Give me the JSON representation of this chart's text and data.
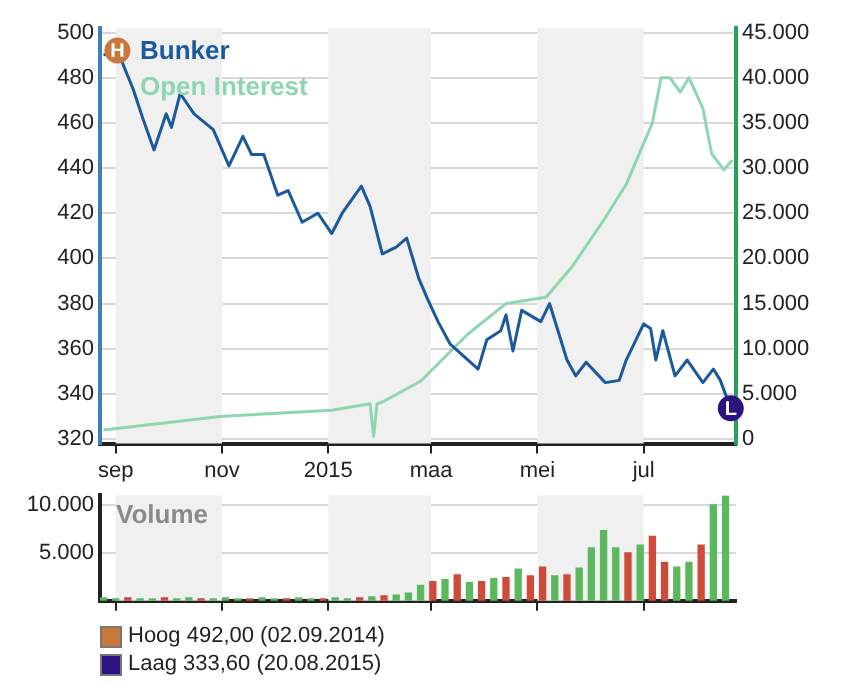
{
  "chart_data": [
    {
      "type": "line",
      "xlim": [
        "2014-08-23",
        "2015-08-23"
      ],
      "xticks": [
        {
          "value": "2014-09-01",
          "label": "sep"
        },
        {
          "value": "2014-11-01",
          "label": "nov"
        },
        {
          "value": "2015-01-01",
          "label": "2015"
        },
        {
          "value": "2015-03-01",
          "label": "maa"
        },
        {
          "value": "2015-05-01",
          "label": "mei"
        },
        {
          "value": "2015-07-01",
          "label": "jul"
        }
      ],
      "ylim": [
        318,
        502
      ],
      "yticks": [
        320,
        340,
        360,
        380,
        400,
        420,
        440,
        460,
        480,
        500
      ],
      "y2lim": [
        -500,
        45500
      ],
      "y2ticks": [
        {
          "value": 0,
          "label": "0"
        },
        {
          "value": 5000,
          "label": "5.000"
        },
        {
          "value": 10000,
          "label": "10.000"
        },
        {
          "value": 15000,
          "label": "15.000"
        },
        {
          "value": 20000,
          "label": "20.000"
        },
        {
          "value": 25000,
          "label": "25.000"
        },
        {
          "value": 30000,
          "label": "30.000"
        },
        {
          "value": 35000,
          "label": "35.000"
        },
        {
          "value": 40000,
          "label": "40.000"
        },
        {
          "value": 45000,
          "label": "45.000"
        }
      ],
      "grid": "y",
      "legend": "top left",
      "marker": "none",
      "bands": [
        {
          "axis": "x",
          "from": "2014-09-01",
          "to": "2014-11-01",
          "color": "#f0f0f0"
        },
        {
          "axis": "x",
          "from": "2015-01-01",
          "to": "2015-03-01",
          "color": "#f0f0f0"
        },
        {
          "axis": "x",
          "from": "2015-05-01",
          "to": "2015-07-01",
          "color": "#f0f0f0"
        }
      ],
      "annotations": [
        {
          "text": "H",
          "x": "2014-09-02",
          "y": 492
        },
        {
          "text": "L",
          "x": "2015-08-20",
          "y": 333.6
        },
        "Hoog 492,00 (02.09.2014)",
        "Laag 333,60 (20.08.2015)"
      ],
      "series": [
        {
          "name": "Bunker",
          "color": "#1a5a9c",
          "x": [
            "2014-08-25",
            "2014-09-02",
            "2014-09-11",
            "2014-09-17",
            "2014-09-23",
            "2014-09-30",
            "2014-10-03",
            "2014-10-08",
            "2014-10-16",
            "2014-10-27",
            "2014-11-05",
            "2014-11-13",
            "2014-11-18",
            "2014-11-25",
            "2014-12-03",
            "2014-12-09",
            "2014-12-17",
            "2014-12-26",
            "2015-01-03",
            "2015-01-09",
            "2015-01-20",
            "2015-01-25",
            "2015-02-01",
            "2015-02-09",
            "2015-02-15",
            "2015-02-22",
            "2015-02-27",
            "2015-03-05",
            "2015-03-12",
            "2015-03-28",
            "2015-04-02",
            "2015-04-10",
            "2015-04-13",
            "2015-04-17",
            "2015-04-22",
            "2015-05-03",
            "2015-05-08",
            "2015-05-18",
            "2015-05-23",
            "2015-05-29",
            "2015-06-09",
            "2015-06-17",
            "2015-06-21",
            "2015-07-01",
            "2015-07-05",
            "2015-07-08",
            "2015-07-12",
            "2015-07-19",
            "2015-07-26",
            "2015-08-04",
            "2015-08-10",
            "2015-08-14",
            "2015-08-20"
          ],
          "values": [
            490,
            492,
            475,
            461,
            448,
            464,
            458,
            473,
            464,
            457,
            441,
            454,
            446,
            446,
            428,
            430,
            416,
            420,
            411,
            420,
            432,
            423,
            402,
            405,
            409,
            391,
            382,
            372,
            362,
            351,
            364,
            368,
            375,
            359,
            377,
            372,
            380,
            355,
            348,
            354,
            345,
            346,
            355,
            371,
            369,
            355,
            368,
            348,
            355,
            345,
            351,
            346,
            333.6
          ]
        },
        {
          "name": "Open Interest",
          "color": "#8ed6b0",
          "axis": "y2",
          "x": [
            "2014-08-25",
            "2014-10-31",
            "2015-01-03",
            "2015-01-25",
            "2015-01-27",
            "2015-01-29",
            "2015-02-01",
            "2015-02-23",
            "2015-03-22",
            "2015-04-13",
            "2015-05-06",
            "2015-05-21",
            "2015-06-09",
            "2015-06-21",
            "2015-07-06",
            "2015-07-11",
            "2015-07-16",
            "2015-07-22",
            "2015-07-27",
            "2015-08-04",
            "2015-08-09",
            "2015-08-16",
            "2015-08-21"
          ],
          "values": [
            1000,
            2500,
            3200,
            3900,
            300,
            3900,
            4100,
            6400,
            11600,
            15000,
            15700,
            19100,
            24500,
            28200,
            35000,
            40000,
            40000,
            38400,
            40000,
            36600,
            31600,
            29800,
            30900
          ]
        }
      ]
    },
    {
      "type": "bar",
      "title": "Volume",
      "tick_labels": "y",
      "grid": "y",
      "xlim": [
        "2014-08-23",
        "2015-08-23"
      ],
      "xticks": [
        {
          "value": "2014-09-01",
          "label": null
        },
        {
          "value": "2014-11-01",
          "label": null
        },
        {
          "value": "2015-01-01",
          "label": null
        },
        {
          "value": "2015-03-01",
          "label": null
        },
        {
          "value": "2015-05-01",
          "label": null
        },
        {
          "value": "2015-07-01",
          "label": null
        }
      ],
      "ylim": [
        0,
        11000
      ],
      "yticks": [
        {
          "value": 5000,
          "label": "5.000"
        },
        {
          "value": 10000,
          "label": "10.000"
        }
      ],
      "bands": [
        {
          "axis": "x",
          "from": "2014-09-01",
          "to": "2014-11-01",
          "color": "#f0f0f0"
        },
        {
          "axis": "x",
          "from": "2015-01-01",
          "to": "2015-03-01",
          "color": "#f0f0f0"
        },
        {
          "axis": "x",
          "from": "2015-05-01",
          "to": "2015-07-01",
          "color": "#f0f0f0"
        }
      ],
      "x": [
        "2014-08-25",
        "2014-09-01",
        "2014-09-08",
        "2014-09-15",
        "2014-09-22",
        "2014-09-29",
        "2014-10-06",
        "2014-10-13",
        "2014-10-20",
        "2014-10-27",
        "2014-11-03",
        "2014-11-10",
        "2014-11-17",
        "2014-11-24",
        "2014-12-01",
        "2014-12-08",
        "2014-12-15",
        "2014-12-22",
        "2014-12-29",
        "2015-01-05",
        "2015-01-12",
        "2015-01-19",
        "2015-01-26",
        "2015-02-02",
        "2015-02-09",
        "2015-02-16",
        "2015-02-23",
        "2015-03-02",
        "2015-03-09",
        "2015-03-16",
        "2015-03-23",
        "2015-03-30",
        "2015-04-06",
        "2015-04-13",
        "2015-04-20",
        "2015-04-27",
        "2015-05-04",
        "2015-05-11",
        "2015-05-18",
        "2015-05-25",
        "2015-06-01",
        "2015-06-08",
        "2015-06-15",
        "2015-06-22",
        "2015-06-29",
        "2015-07-06",
        "2015-07-13",
        "2015-07-20",
        "2015-07-27",
        "2015-08-03",
        "2015-08-10",
        "2015-08-17"
      ],
      "values": [
        300,
        200,
        300,
        200,
        200,
        300,
        200,
        300,
        200,
        200,
        300,
        200,
        200,
        300,
        200,
        200,
        300,
        200,
        200,
        300,
        200,
        300,
        400,
        500,
        600,
        800,
        1600,
        2000,
        2200,
        2700,
        1900,
        2000,
        2300,
        2400,
        3300,
        2600,
        3500,
        2600,
        2700,
        3400,
        5500,
        7300,
        5500,
        5000,
        5800,
        6700,
        4000,
        3500,
        4000,
        5800,
        10000,
        10900
      ],
      "colors": [
        "#5cb85c",
        "#5cb85c",
        "#d04a3a",
        "#5cb85c",
        "#5cb85c",
        "#d04a3a",
        "#5cb85c",
        "#5cb85c",
        "#d04a3a",
        "#5cb85c",
        "#5cb85c",
        "#5cb85c",
        "#d04a3a",
        "#5cb85c",
        "#5cb85c",
        "#d04a3a",
        "#5cb85c",
        "#5cb85c",
        "#d04a3a",
        "#5cb85c",
        "#5cb85c",
        "#d04a3a",
        "#5cb85c",
        "#d04a3a",
        "#5cb85c",
        "#5cb85c",
        "#5cb85c",
        "#d04a3a",
        "#5cb85c",
        "#d04a3a",
        "#5cb85c",
        "#d04a3a",
        "#5cb85c",
        "#d04a3a",
        "#5cb85c",
        "#d04a3a",
        "#d04a3a",
        "#5cb85c",
        "#d04a3a",
        "#5cb85c",
        "#5cb85c",
        "#5cb85c",
        "#5cb85c",
        "#d04a3a",
        "#5cb85c",
        "#d04a3a",
        "#d04a3a",
        "#5cb85c",
        "#5cb85c",
        "#d04a3a",
        "#5cb85c",
        "#5cb85c"
      ]
    }
  ]
}
